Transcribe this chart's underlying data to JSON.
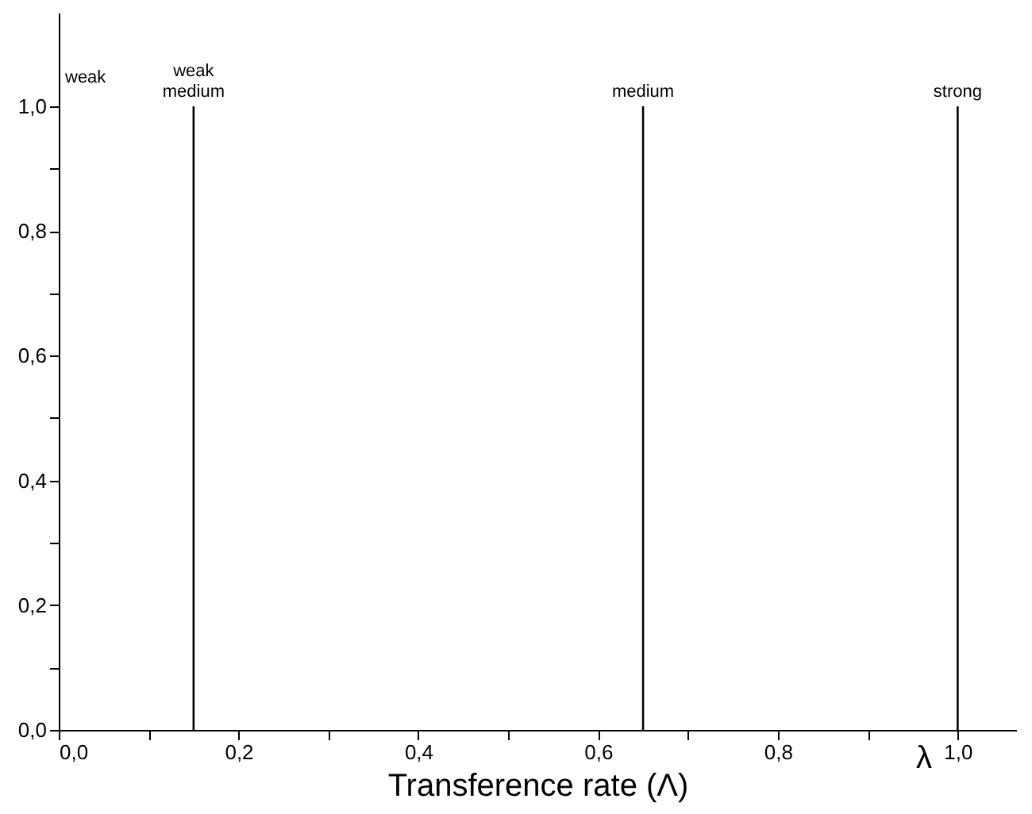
{
  "chart_data": {
    "type": "bar",
    "xlabel": "Transference rate (Λ)",
    "x": [
      0.15,
      0.65,
      1.0
    ],
    "values": [
      1,
      1,
      1
    ],
    "color": "#000000",
    "annotations": [
      "weak",
      {
        "text": "weak medium",
        "x": 0.15,
        "y": 1
      },
      {
        "text": "medium",
        "x": 0.65,
        "y": 1
      },
      {
        "text": "strong",
        "x": 1.0,
        "y": 1
      },
      "λ"
    ],
    "xlim": [
      0,
      1.065
    ],
    "ylim": [
      0,
      1.15
    ],
    "xticks": [
      {
        "value": 0,
        "label": "0,0"
      },
      {
        "value": 0.1,
        "label": null
      },
      {
        "value": 0.2,
        "label": "0,2"
      },
      {
        "value": 0.3,
        "label": null
      },
      {
        "value": 0.4,
        "label": "0,4"
      },
      {
        "value": 0.5,
        "label": null
      },
      {
        "value": 0.6,
        "label": "0,6"
      },
      {
        "value": 0.7,
        "label": null
      },
      {
        "value": 0.8,
        "label": "0,8"
      },
      {
        "value": 0.9,
        "label": null
      },
      {
        "value": 1.0,
        "label": "1,0"
      }
    ],
    "yticks": [
      {
        "value": 0,
        "label": "0,0"
      },
      {
        "value": 0.1,
        "label": null
      },
      {
        "value": 0.2,
        "label": "0,2"
      },
      {
        "value": 0.3,
        "label": null
      },
      {
        "value": 0.4,
        "label": "0,4"
      },
      {
        "value": 0.5,
        "label": null
      },
      {
        "value": 0.6,
        "label": "0,6"
      },
      {
        "value": 0.7,
        "label": null
      },
      {
        "value": 0.8,
        "label": "0,8"
      },
      {
        "value": 0.9,
        "label": null
      },
      {
        "value": 1.0,
        "label": "1,0"
      }
    ]
  }
}
